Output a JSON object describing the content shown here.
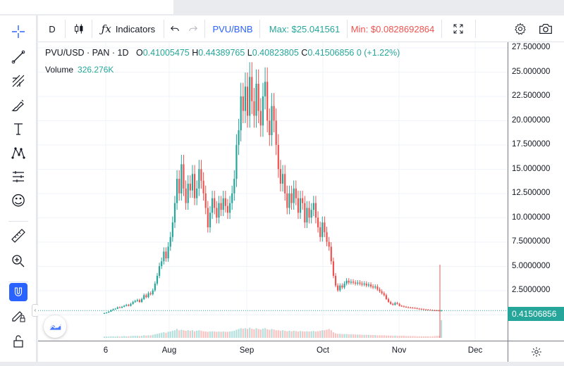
{
  "toolbar": {
    "interval": "D",
    "indicators_label": "Indicators",
    "compare_symbol": "PVU/BNB",
    "max_label": "Max: $25.041561",
    "min_label": "Min: $0.0828692864"
  },
  "legend": {
    "symbol": "PVU/USD · PAN · 1D",
    "open_key": "O",
    "open": "0.41005475",
    "high_key": "H",
    "high": "0.44389765",
    "low_key": "L",
    "low": "0.40823805",
    "close_key": "C",
    "close": "0.41506856",
    "change": "0 (+1.22%)",
    "volume_label": "Volume",
    "volume_value": "326.276K"
  },
  "price_axis": {
    "ticks": [
      "27.500000",
      "25.000000",
      "22.500000",
      "20.000000",
      "17.500000",
      "15.000000",
      "12.500000",
      "10.000000",
      "7.5000000",
      "5.0000000",
      "2.5000000"
    ],
    "last_price": "0.41506856"
  },
  "time_axis": {
    "ticks": [
      "6",
      "Aug",
      "Sep",
      "Oct",
      "Nov",
      "Dec"
    ]
  },
  "colors": {
    "up": "#26a69a",
    "down": "#ef5350",
    "accent": "#2962ff",
    "grid": "#f0f3fa"
  },
  "icons": {
    "left_toolbar": [
      "crosshair-icon",
      "trend-line-icon",
      "fib-icon",
      "brush-icon",
      "text-icon",
      "pattern-icon",
      "forecast-icon",
      "emoji-icon",
      "ruler-icon",
      "zoom-in-icon",
      "magnet-icon",
      "pencil-lock-icon",
      "lock-icon"
    ],
    "top_toolbar": [
      "candles-icon",
      "fx-icon",
      "undo-icon",
      "redo-icon",
      "fullscreen-icon",
      "settings-icon",
      "camera-icon"
    ],
    "corner": "gear-icon",
    "emoji_glyph": "☺"
  },
  "chart_data": {
    "type": "candlestick",
    "title": "PVU/USD · PAN · 1D",
    "xlabel": "",
    "ylabel": "",
    "ylim": [
      0,
      27.5
    ],
    "x_ticks": [
      "6",
      "Aug",
      "Sep",
      "Oct",
      "Nov",
      "Dec"
    ],
    "grid": true,
    "series": [
      {
        "name": "PVU/USD",
        "close_values": [
          0.15,
          0.2,
          0.3,
          0.45,
          0.55,
          0.6,
          0.75,
          0.7,
          0.8,
          0.9,
          1.0,
          0.9,
          1.1,
          1.3,
          1.4,
          1.5,
          1.3,
          1.6,
          2.0,
          1.8,
          2.2,
          2.1,
          2.5,
          3.2,
          4.0,
          5.0,
          5.5,
          6.5,
          5.8,
          7.0,
          8.0,
          9.5,
          11.5,
          14.0,
          12.5,
          15.5,
          13.0,
          11.5,
          13.5,
          12.8,
          14.5,
          12.0,
          13.0,
          15.0,
          13.8,
          12.5,
          11.0,
          9.0,
          10.5,
          12.0,
          11.0,
          10.0,
          11.5,
          10.8,
          12.0,
          11.2,
          10.5,
          11.5,
          12.5,
          14.0,
          17.5,
          19.0,
          22.5,
          21.0,
          23.5,
          20.5,
          24.5,
          22.0,
          20.5,
          23.8,
          21.0,
          19.5,
          22.5,
          24.0,
          20.0,
          18.5,
          21.5,
          20.0,
          17.5,
          15.0,
          13.5,
          14.5,
          12.5,
          11.0,
          12.5,
          11.5,
          13.0,
          12.0,
          10.5,
          12.0,
          11.5,
          9.5,
          11.0,
          10.0,
          10.8,
          11.5,
          10.0,
          9.0,
          8.0,
          9.5,
          8.5,
          7.5,
          7.0,
          5.5,
          4.0,
          3.0,
          2.5,
          3.0,
          2.8,
          3.2,
          3.5,
          3.3,
          3.4,
          3.3,
          3.2,
          3.3,
          3.2,
          3.1,
          3.2,
          3.0,
          3.1,
          2.9,
          2.8,
          2.9,
          2.6,
          2.4,
          2.2,
          2.0,
          1.6,
          1.3,
          1.1,
          1.0,
          1.2,
          1.1,
          0.9,
          0.85,
          0.8,
          0.75,
          0.72,
          0.7,
          0.68,
          0.65,
          0.6,
          0.58,
          0.55,
          0.52,
          0.5,
          0.48,
          0.45,
          0.44,
          0.43,
          0.42,
          0.41,
          0.415
        ],
        "volume_values": [
          0.05,
          0.05,
          0.05,
          0.06,
          0.06,
          0.05,
          0.06,
          0.05,
          0.06,
          0.07,
          0.06,
          0.06,
          0.07,
          0.08,
          0.08,
          0.08,
          0.07,
          0.08,
          0.1,
          0.09,
          0.1,
          0.1,
          0.12,
          0.14,
          0.16,
          0.18,
          0.2,
          0.22,
          0.2,
          0.24,
          0.25,
          0.28,
          0.3,
          0.35,
          0.3,
          0.32,
          0.3,
          0.28,
          0.3,
          0.28,
          0.3,
          0.26,
          0.28,
          0.3,
          0.28,
          0.26,
          0.25,
          0.24,
          0.25,
          0.26,
          0.25,
          0.24,
          0.25,
          0.24,
          0.25,
          0.24,
          0.24,
          0.25,
          0.26,
          0.28,
          0.32,
          0.35,
          0.38,
          0.36,
          0.38,
          0.35,
          0.4,
          0.36,
          0.34,
          0.38,
          0.35,
          0.33,
          0.36,
          0.38,
          0.34,
          0.32,
          0.35,
          0.33,
          0.3,
          0.3,
          0.28,
          0.3,
          0.28,
          0.26,
          0.28,
          0.26,
          0.28,
          0.27,
          0.25,
          0.27,
          0.26,
          0.25,
          0.26,
          0.25,
          0.26,
          0.27,
          0.25,
          0.26,
          0.28,
          0.3,
          0.3,
          0.32,
          0.35,
          0.3,
          0.22,
          0.18,
          0.16,
          0.16,
          0.15,
          0.15,
          0.15,
          0.14,
          0.14,
          0.14,
          0.13,
          0.13,
          0.13,
          0.12,
          0.12,
          0.12,
          0.12,
          0.11,
          0.11,
          0.11,
          0.1,
          0.1,
          0.1,
          0.1,
          0.09,
          0.09,
          0.09,
          0.08,
          0.09,
          0.08,
          0.08,
          0.08,
          0.08,
          0.07,
          0.07,
          0.07,
          0.07,
          0.07,
          0.06,
          0.06,
          0.06,
          0.06,
          0.06,
          0.06,
          0.06,
          0.06,
          0.07,
          0.08,
          0.08,
          0.7
        ]
      }
    ]
  }
}
